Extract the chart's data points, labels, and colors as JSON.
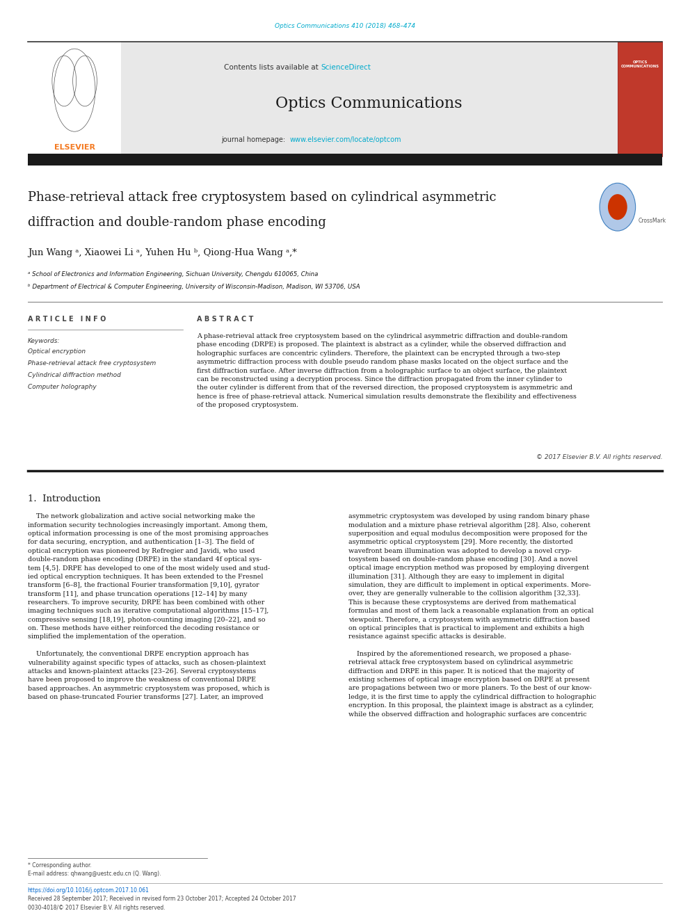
{
  "page_width": 9.92,
  "page_height": 13.23,
  "background_color": "#ffffff",
  "top_citation": "Optics Communications 410 (2018) 468–474",
  "top_citation_color": "#00aacc",
  "header_bg": "#e8e8e8",
  "header_sciencedirect_color": "#00aacc",
  "journal_name": "Optics Communications",
  "journal_url": "www.elsevier.com/locate/optcom",
  "journal_url_color": "#00aacc",
  "dark_bar_color": "#1a1a1a",
  "paper_title_line1": "Phase-retrieval attack free cryptosystem based on cylindrical asymmetric",
  "paper_title_line2": "diffraction and double-random phase encoding",
  "authors": "Jun Wang ᵃ, Xiaowei Li ᵃ, Yuhen Hu ᵇ, Qiong-Hua Wang ᵃ,*",
  "affil_a": "ᵃ School of Electronics and Information Engineering, Sichuan University, Chengdu 610065, China",
  "affil_b": "ᵇ Department of Electrical & Computer Engineering, University of Wisconsin-Madison, Madison, WI 53706, USA",
  "article_info_title": "A R T I C L E   I N F O",
  "abstract_title": "A B S T R A C T",
  "keywords_label": "Keywords:",
  "keywords": [
    "Optical encryption",
    "Phase-retrieval attack free cryptosystem",
    "Cylindrical diffraction method",
    "Computer holography"
  ],
  "abstract_text": "A phase-retrieval attack free cryptosystem based on the cylindrical asymmetric diffraction and double-random\nphase encoding (DRPE) is proposed. The plaintext is abstract as a cylinder, while the observed diffraction and\nholographic surfaces are concentric cylinders. Therefore, the plaintext can be encrypted through a two-step\nasymmetric diffraction process with double pseudo random phase masks located on the object surface and the\nfirst diffraction surface. After inverse diffraction from a holographic surface to an object surface, the plaintext\ncan be reconstructed using a decryption process. Since the diffraction propagated from the inner cylinder to\nthe outer cylinder is different from that of the reversed direction, the proposed cryptosystem is asymmetric and\nhence is free of phase-retrieval attack. Numerical simulation results demonstrate the flexibility and effectiveness\nof the proposed cryptosystem.",
  "copyright": "© 2017 Elsevier B.V. All rights reserved.",
  "intro_heading": "1.  Introduction",
  "intro_col1_para1": "    The network globalization and active social networking make the\ninformation security technologies increasingly important. Among them,\noptical information processing is one of the most promising approaches\nfor data securing, encryption, and authentication [1–3]. The field of\noptical encryption was pioneered by Refregier and Javidi, who used\ndouble-random phase encoding (DRPE) in the standard 4f optical sys-\ntem [4,5]. DRPE has developed to one of the most widely used and stud-\nied optical encryption techniques. It has been extended to the Fresnel\ntransform [6–8], the fractional Fourier transformation [9,10], gyrator\ntransform [11], and phase truncation operations [12–14] by many\nresearchers. To improve security, DRPE has been combined with other\nimaging techniques such as iterative computational algorithms [15–17],\ncompressive sensing [18,19], photon-counting imaging [20–22], and so\non. These methods have either reinforced the decoding resistance or\nsimplified the implementation of the operation.",
  "intro_col1_para2": "    Unfortunately, the conventional DRPE encryption approach has\nvulnerability against specific types of attacks, such as chosen-plaintext\nattacks and known-plaintext attacks [23–26]. Several cryptosystems\nhave been proposed to improve the weakness of conventional DRPE\nbased approaches. An asymmetric cryptosystem was proposed, which is\nbased on phase-truncated Fourier transforms [27]. Later, an improved",
  "intro_col2_para1": "asymmetric cryptosystem was developed by using random binary phase\nmodulation and a mixture phase retrieval algorithm [28]. Also, coherent\nsuperposition and equal modulus decomposition were proposed for the\nasymmetric optical cryptosystem [29]. More recently, the distorted\nwavefront beam illumination was adopted to develop a novel cryp-\ntosystem based on double-random phase encoding [30]. And a novel\noptical image encryption method was proposed by employing divergent\nillumination [31]. Although they are easy to implement in digital\nsimulation, they are difficult to implement in optical experiments. More-\nover, they are generally vulnerable to the collision algorithm [32,33].\nThis is because these cryptosystems are derived from mathematical\nformulas and most of them lack a reasonable explanation from an optical\nviewpoint. Therefore, a cryptosystem with asymmetric diffraction based\non optical principles that is practical to implement and exhibits a high\nresistance against specific attacks is desirable.",
  "intro_col2_para2": "    Inspired by the aforementioned research, we proposed a phase-\nretrieval attack free cryptosystem based on cylindrical asymmetric\ndiffraction and DRPE in this paper. It is noticed that the majority of\nexisting schemes of optical image encryption based on DRPE at present\nare propagations between two or more planers. To the best of our know-\nledge, it is the first time to apply the cylindrical diffraction to holographic\nencryption. In this proposal, the plaintext image is abstract as a cylinder,\nwhile the observed diffraction and holographic surfaces are concentric",
  "footer_corr": "* Corresponding author.",
  "footer_email": "E-mail address: qhwang@uestc.edu.cn (Q. Wang).",
  "footer_doi": "https://doi.org/10.1016/j.optcom.2017.10.061",
  "footer_received": "Received 28 September 2017; Received in revised form 23 October 2017; Accepted 24 October 2017",
  "footer_issn": "0030-4018/© 2017 Elsevier B.V. All rights reserved.",
  "elsevier_orange": "#f47920",
  "link_blue": "#0066cc"
}
